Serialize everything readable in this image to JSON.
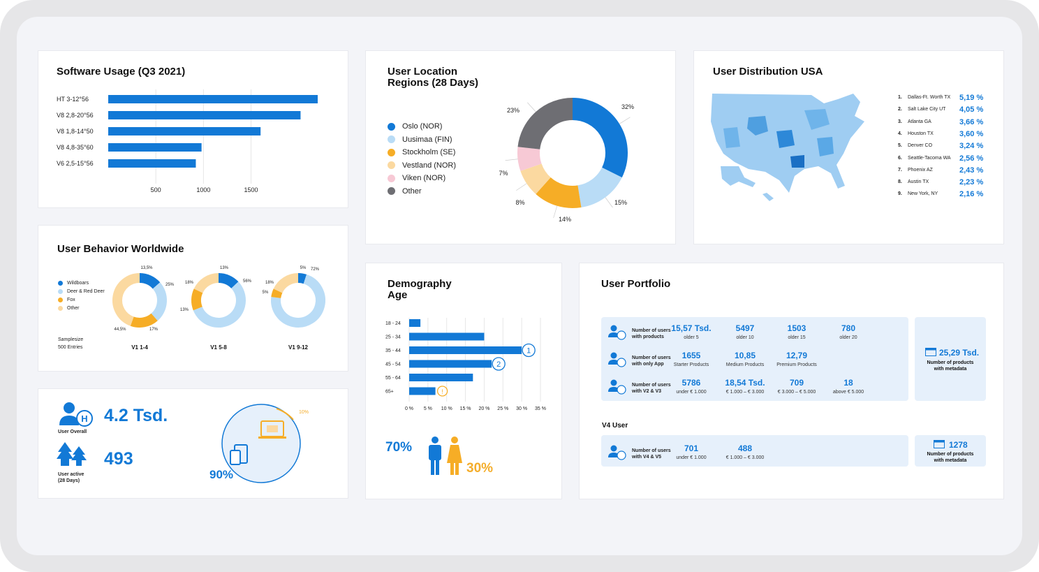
{
  "software_usage": {
    "title": "Software Usage (Q3 2021)",
    "chart_data": {
      "type": "bar",
      "categories": [
        "HT 3-12°56",
        "V8 2,8-20°56",
        "V8 1,8-14°50",
        "V8 4,8-35°60",
        "V6 2,5-15°56"
      ],
      "values": [
        2200,
        2020,
        1600,
        980,
        920
      ],
      "xticks": [
        "500",
        "1000",
        "1500"
      ],
      "xlim": [
        0,
        2200
      ]
    }
  },
  "user_location": {
    "title": "User Location\nRegions (28 Days)",
    "legend": [
      "Oslo (NOR)",
      "Uusimaa (FIN)",
      "Stockholm (SE)",
      "Vestland (NOR)",
      "Viken (NOR)",
      "Other"
    ],
    "colors": [
      "#1279d6",
      "#b9dcf6",
      "#f6ad26",
      "#fbd9a0",
      "#f7c9d5",
      "#6e6e73"
    ],
    "chart_data": {
      "type": "pie",
      "categories": [
        "Oslo (NOR)",
        "Uusimaa (FIN)",
        "Stockholm (SE)",
        "Vestland (NOR)",
        "Viken (NOR)",
        "Other"
      ],
      "values": [
        32,
        15,
        14,
        8,
        7,
        23
      ],
      "labels": [
        "32%",
        "15%",
        "14%",
        "8%",
        "7%",
        "23%"
      ]
    }
  },
  "user_distribution": {
    "title": "User Distribution USA",
    "cities": [
      {
        "rank": "1.",
        "name": "Dallas-Ft. Worth TX",
        "pct": "5,19 %"
      },
      {
        "rank": "2.",
        "name": "Salt Lake City UT",
        "pct": "4,05 %"
      },
      {
        "rank": "3.",
        "name": "Atlanta GA",
        "pct": "3,66 %"
      },
      {
        "rank": "4.",
        "name": "Houston TX",
        "pct": "3,60 %"
      },
      {
        "rank": "5.",
        "name": "Denver CO",
        "pct": "3,24 %"
      },
      {
        "rank": "6.",
        "name": "Seattle-Tacoma WA",
        "pct": "2,56 %"
      },
      {
        "rank": "7.",
        "name": "Phoenix AZ",
        "pct": "2,43 %"
      },
      {
        "rank": "8.",
        "name": "Austin TX",
        "pct": "2,23 %"
      },
      {
        "rank": "9.",
        "name": "New York, NY",
        "pct": "2,16 %"
      }
    ]
  },
  "behavior": {
    "title": "User Behavior Worldwide",
    "legend": [
      "Wildboars",
      "Deer & Red Deer",
      "Fox",
      "Other"
    ],
    "colors": [
      "#1279d6",
      "#b9dcf6",
      "#f6ad26",
      "#fbd9a0"
    ],
    "samplesize": "Samplesize",
    "entries": "500 Entries",
    "chart_data": [
      {
        "type": "pie",
        "name": "V1 1-4",
        "categories": [
          "Wildboars",
          "Deer & Red Deer",
          "Fox",
          "Other"
        ],
        "values": [
          13.5,
          25,
          17,
          44.5
        ],
        "labels": [
          "13,5%",
          "25%",
          "17%",
          "44,5%"
        ]
      },
      {
        "type": "pie",
        "name": "V1 5-8",
        "categories": [
          "Wildboars",
          "Deer & Red Deer",
          "Fox",
          "Other"
        ],
        "values": [
          13,
          56,
          13,
          18
        ],
        "labels": [
          "13%",
          "56%",
          "13%",
          "18%"
        ]
      },
      {
        "type": "pie",
        "name": "V1 9-12",
        "categories": [
          "Wildboars",
          "Deer & Red Deer",
          "Fox",
          "Other"
        ],
        "values": [
          5,
          72,
          5,
          18
        ],
        "labels": [
          "5%",
          "72%",
          "5%",
          "18%"
        ]
      }
    ]
  },
  "users": {
    "overall_value": "4.2 Tsd.",
    "overall_label": "User Overall",
    "active_value": "493",
    "active_label": "User active\n(28 Days)",
    "big_pct": "90%",
    "small_pct": "10%"
  },
  "demography": {
    "title": "Demography\nAge",
    "chart_data": {
      "type": "bar",
      "categories": [
        "18 - 24",
        "25 - 34",
        "35 - 44",
        "45 - 54",
        "55 - 64",
        "65+"
      ],
      "values": [
        3,
        20,
        30,
        22,
        17,
        7
      ],
      "xticks": [
        "0 %",
        "5 %",
        "10 %",
        "15 %",
        "20 %",
        "25 %",
        "30 %",
        "35 %"
      ],
      "xlim": [
        0,
        35
      ],
      "markers": [
        "1",
        "2",
        "!"
      ]
    },
    "male_pct": "70%",
    "female_pct": "30%"
  },
  "portfolio": {
    "title": "User Portfolio",
    "rows": [
      {
        "label": "Number of users\nwith products",
        "cells": [
          [
            "15,57 Tsd.",
            "older 5"
          ],
          [
            "5497",
            "older 10"
          ],
          [
            "1503",
            "older 15"
          ],
          [
            "780",
            "older 20"
          ]
        ]
      },
      {
        "label": "Number of users\nwith only App",
        "cells": [
          [
            "1655",
            "Starter Products"
          ],
          [
            "10,85",
            "Medium Products"
          ],
          [
            "12,79",
            "Premium Products"
          ]
        ]
      },
      {
        "label": "Number of users\nwith V2 & V3",
        "cells": [
          [
            "5786",
            "under € 1.000"
          ],
          [
            "18,54 Tsd.",
            "€ 1.000 – € 3.000"
          ],
          [
            "709",
            "€ 3.000 – € 5.000"
          ],
          [
            "18",
            "above € 5.000"
          ]
        ]
      }
    ],
    "meta1_value": "25,29 Tsd.",
    "meta1_label": "Number of products\nwith metadata",
    "v4_title": "V4 User",
    "v4_row": {
      "label": "Number of users\nwith V4 & V5",
      "cells": [
        [
          "701",
          "under € 1.000"
        ],
        [
          "488",
          "€ 1.000 – € 3.000"
        ]
      ]
    },
    "meta2_value": "1278",
    "meta2_label": "Number of products\nwith metadata"
  }
}
